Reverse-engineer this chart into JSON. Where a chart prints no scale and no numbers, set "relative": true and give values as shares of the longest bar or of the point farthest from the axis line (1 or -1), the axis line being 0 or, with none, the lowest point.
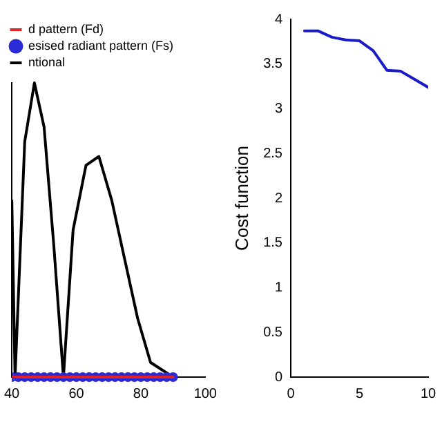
{
  "chart_data": [
    {
      "type": "line",
      "relative": true,
      "xlim": [
        40,
        100
      ],
      "xticks": [
        40,
        60,
        80,
        100
      ],
      "tick_labels": "x",
      "legend": "top",
      "marker": "none",
      "series": [
        {
          "name": "d pattern (Fd)",
          "color": "#e0202a",
          "x": [
            40,
            50,
            60,
            70,
            80,
            90
          ],
          "values": [
            0,
            0,
            0,
            0,
            0,
            0
          ]
        },
        {
          "name": "esised radiant pattern (Fs)",
          "type": "scatter",
          "color": "#2b2bd6",
          "marker": "circle",
          "x": [
            40,
            42,
            44,
            46,
            48,
            50,
            52,
            54,
            56,
            58,
            60,
            62,
            64,
            66,
            68,
            70,
            72,
            74,
            76,
            78,
            80,
            82,
            84,
            86,
            88,
            90
          ],
          "values": [
            0,
            0,
            0,
            0,
            0,
            0,
            0,
            0,
            0,
            0,
            0,
            0,
            0,
            0,
            0,
            0,
            0,
            0,
            0,
            0,
            0,
            0,
            0,
            0,
            0,
            0
          ]
        },
        {
          "name": "ntional",
          "color": "#000000",
          "x": [
            40,
            41,
            44,
            47,
            50,
            53,
            56,
            59,
            63,
            67,
            71,
            75,
            79,
            83,
            90
          ],
          "values": [
            0.6,
            0,
            0.8,
            1,
            0.85,
            0.45,
            0,
            0.5,
            0.72,
            0.75,
            0.6,
            0.4,
            0.2,
            0.05,
            0
          ]
        }
      ]
    },
    {
      "type": "line",
      "ylabel": "Cost function",
      "xlim": [
        0,
        10
      ],
      "xticks": [
        0,
        5,
        10
      ],
      "ylim": [
        0,
        4
      ],
      "yticks": [
        0,
        0.5,
        1,
        1.5,
        2,
        2.5,
        3,
        3.5,
        4
      ],
      "marker": "none",
      "series": [
        {
          "color": "#1a1ac8",
          "x": [
            1,
            2,
            3,
            4,
            5,
            6,
            7,
            8,
            9,
            10
          ],
          "values": [
            3.87,
            3.87,
            3.8,
            3.77,
            3.76,
            3.65,
            3.43,
            3.42,
            3.33,
            3.24
          ]
        }
      ]
    }
  ]
}
